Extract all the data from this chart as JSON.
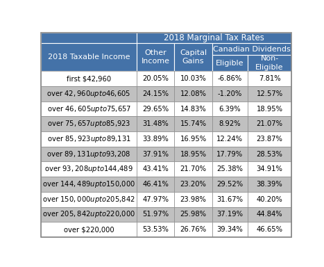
{
  "title_top": "2018 Marginal Tax Rates",
  "col_header_left": "2018 Taxable Income",
  "col_header_other": "Other\nIncome",
  "col_header_capital": "Capital\nGains",
  "canadian_dividends_label": "Canadian Dividends",
  "col_header_eligible": "Eligible",
  "col_header_noneligible": "Non-\nEligible",
  "income_rows": [
    "first $42,960",
    "over $42,960 up to $46,605",
    "over $46,605 up to $75,657",
    "over $75,657 up to $85,923",
    "over $85,923 up to $89,131",
    "over $89,131 up to $93,208",
    "over $93,208 up to $144,489",
    "over $144,489 up to $150,000",
    "over $150,000 up to $205,842",
    "over $205,842 up to $220,000",
    "over $220,000"
  ],
  "data_rows": [
    [
      "20.05%",
      "10.03%",
      "-6.86%",
      "7.81%"
    ],
    [
      "24.15%",
      "12.08%",
      "-1.20%",
      "12.57%"
    ],
    [
      "29.65%",
      "14.83%",
      "6.39%",
      "18.95%"
    ],
    [
      "31.48%",
      "15.74%",
      "8.92%",
      "21.07%"
    ],
    [
      "33.89%",
      "16.95%",
      "12.24%",
      "23.87%"
    ],
    [
      "37.91%",
      "18.95%",
      "17.79%",
      "28.53%"
    ],
    [
      "43.41%",
      "21.70%",
      "25.38%",
      "34.91%"
    ],
    [
      "46.41%",
      "23.20%",
      "29.52%",
      "38.39%"
    ],
    [
      "47.97%",
      "23.98%",
      "31.67%",
      "40.20%"
    ],
    [
      "51.97%",
      "25.98%",
      "37.19%",
      "44.84%"
    ],
    [
      "53.53%",
      "26.76%",
      "39.34%",
      "46.65%"
    ]
  ],
  "header_bg": "#4472a8",
  "header_text": "#ffffff",
  "row_odd_bg": "#ffffff",
  "row_even_bg": "#c0c0c0",
  "data_odd_bg": "#ffffff",
  "data_even_bg": "#c0c0c0",
  "cell_border_color": "#888888",
  "header_border_color": "#ffffff",
  "text_color_dark": "#000000",
  "font_size": 7.2,
  "header_font_size": 8.0,
  "fig_width": 4.67,
  "fig_height": 3.84,
  "dpi": 100
}
